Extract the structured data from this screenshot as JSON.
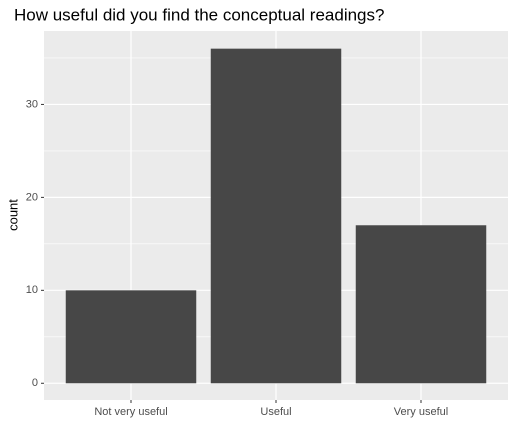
{
  "chart_data": {
    "type": "bar",
    "title": "How useful did you find the conceptual readings?",
    "y_label": "count",
    "categories": [
      "Not very useful",
      "Useful",
      "Very useful"
    ],
    "values": [
      10,
      36,
      17
    ],
    "color": "#474747",
    "ylim": [
      -1.8,
      37.9
    ],
    "yticks": [
      0,
      10,
      20,
      30
    ],
    "minor_yticks": [
      5,
      15,
      25,
      35
    ],
    "grid": true
  }
}
